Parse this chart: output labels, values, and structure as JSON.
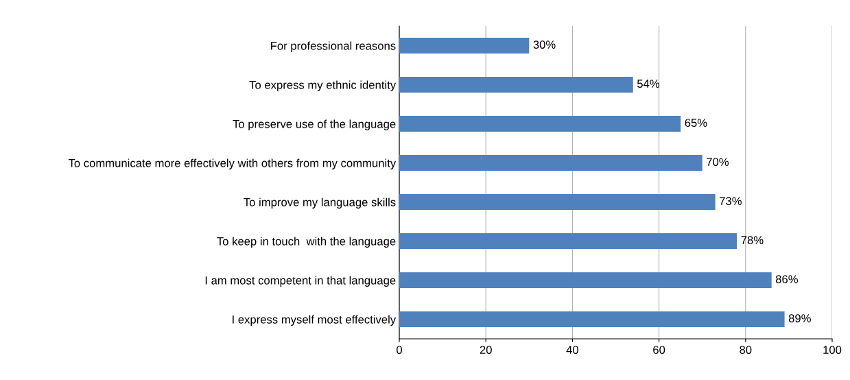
{
  "chart_data": {
    "type": "bar",
    "orientation": "horizontal",
    "categories": [
      "For professional reasons",
      "To express my ethnic identity",
      "To preserve use of the language",
      "To communicate more effectively with others from my community",
      "To improve my language skills",
      "To keep in touch  with the language",
      "I am most competent in that language",
      "I express myself most effectively"
    ],
    "values": [
      30,
      54,
      65,
      70,
      73,
      78,
      86,
      89
    ],
    "value_labels": [
      "30%",
      "54%",
      "65%",
      "70%",
      "73%",
      "78%",
      "86%",
      "89%"
    ],
    "color": "#4f81bd",
    "xlim": [
      0,
      100
    ],
    "xticks": [
      0,
      20,
      40,
      60,
      80,
      100
    ],
    "grid": "x"
  }
}
